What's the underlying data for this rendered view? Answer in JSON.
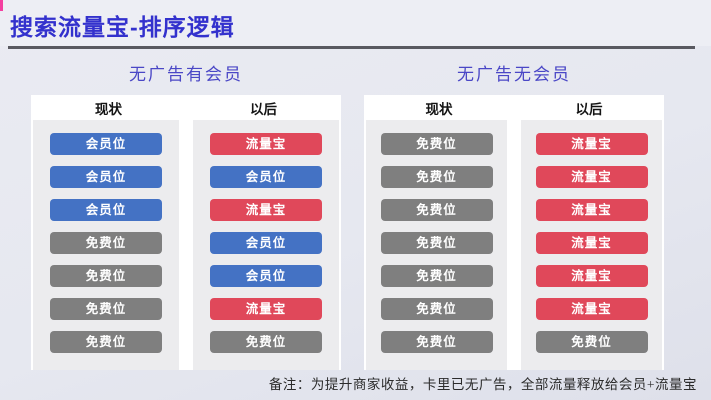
{
  "slide": {
    "title": "搜索流量宝-排序逻辑",
    "footer": "备注：为提升商家收益，卡里已无广告，全部流量释放给会员+流量宝"
  },
  "colors": {
    "title": "#3331cd",
    "section_title": "#4a47c6",
    "member": "#4472c4",
    "traffic": "#e0485a",
    "free": "#7f7f7f"
  },
  "sections": [
    {
      "title": "无广告有会员",
      "columns": [
        {
          "header": "现状",
          "pills": [
            {
              "label": "会员位",
              "type": "member"
            },
            {
              "label": "会员位",
              "type": "member"
            },
            {
              "label": "会员位",
              "type": "member"
            },
            {
              "label": "免费位",
              "type": "free"
            },
            {
              "label": "免费位",
              "type": "free"
            },
            {
              "label": "免费位",
              "type": "free"
            },
            {
              "label": "免费位",
              "type": "free"
            }
          ]
        },
        {
          "header": "以后",
          "pills": [
            {
              "label": "流量宝",
              "type": "traffic"
            },
            {
              "label": "会员位",
              "type": "member"
            },
            {
              "label": "流量宝",
              "type": "traffic"
            },
            {
              "label": "会员位",
              "type": "member"
            },
            {
              "label": "会员位",
              "type": "member"
            },
            {
              "label": "流量宝",
              "type": "traffic"
            },
            {
              "label": "免费位",
              "type": "free"
            }
          ]
        }
      ]
    },
    {
      "title": "无广告无会员",
      "columns": [
        {
          "header": "现状",
          "pills": [
            {
              "label": "免费位",
              "type": "free"
            },
            {
              "label": "免费位",
              "type": "free"
            },
            {
              "label": "免费位",
              "type": "free"
            },
            {
              "label": "免费位",
              "type": "free"
            },
            {
              "label": "免费位",
              "type": "free"
            },
            {
              "label": "免费位",
              "type": "free"
            },
            {
              "label": "免费位",
              "type": "free"
            }
          ]
        },
        {
          "header": "以后",
          "pills": [
            {
              "label": "流量宝",
              "type": "traffic"
            },
            {
              "label": "流量宝",
              "type": "traffic"
            },
            {
              "label": "流量宝",
              "type": "traffic"
            },
            {
              "label": "流量宝",
              "type": "traffic"
            },
            {
              "label": "流量宝",
              "type": "traffic"
            },
            {
              "label": "流量宝",
              "type": "traffic"
            },
            {
              "label": "免费位",
              "type": "free"
            }
          ]
        }
      ]
    }
  ]
}
